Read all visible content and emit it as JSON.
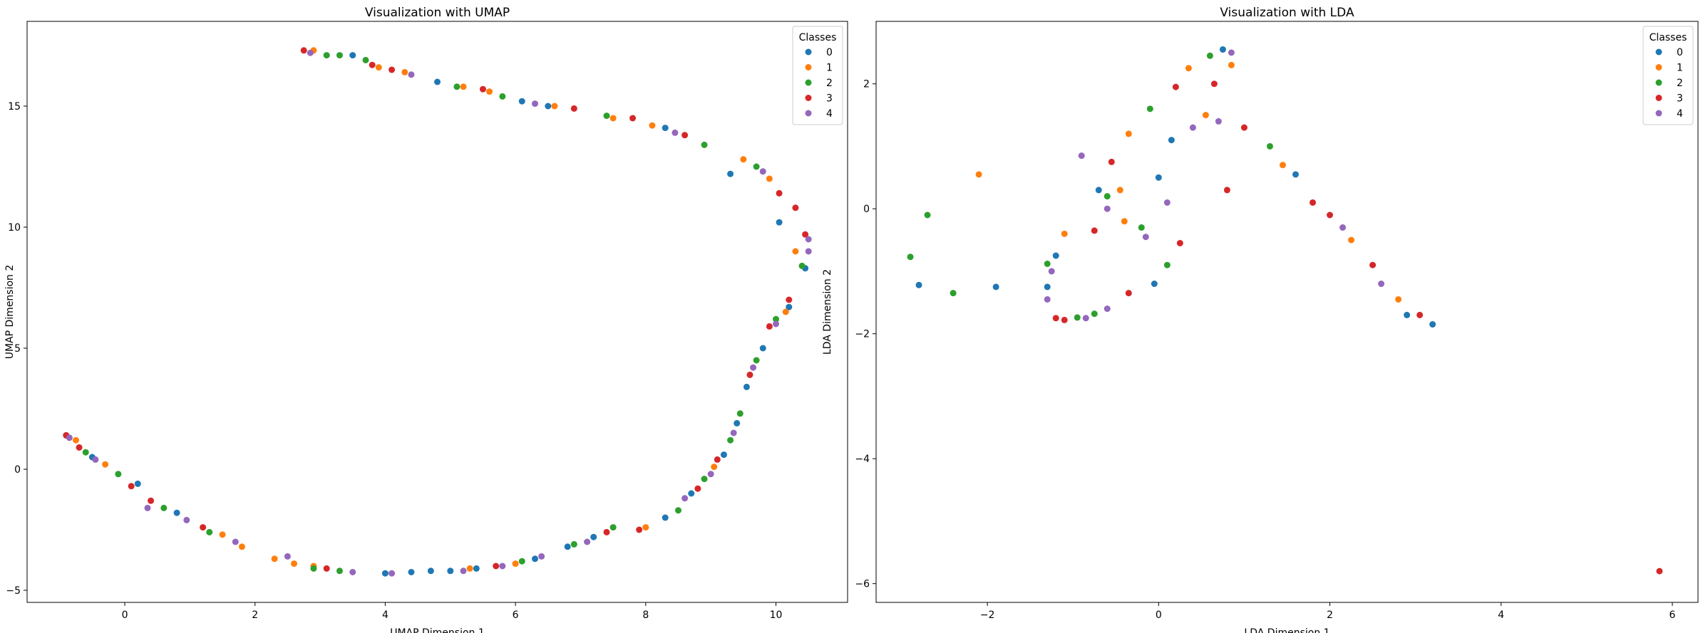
{
  "chart_data": [
    {
      "type": "scatter",
      "title": "Visualization with UMAP",
      "xlabel": "UMAP Dimension 1",
      "ylabel": "UMAP Dimension 2",
      "xlim": [
        -1.5,
        11.1
      ],
      "ylim": [
        -5.5,
        18.5
      ],
      "xticks": [
        0,
        2,
        4,
        6,
        8,
        10
      ],
      "yticks": [
        -5,
        0,
        5,
        10,
        15
      ],
      "grid": false,
      "legend": {
        "title": "Classes",
        "placement": "top-right"
      },
      "series": [
        {
          "name": "0",
          "color": "#1f77b4",
          "points": [
            [
              3.5,
              17.1
            ],
            [
              4.8,
              16.0
            ],
            [
              6.1,
              15.2
            ],
            [
              6.5,
              15.0
            ],
            [
              8.3,
              14.1
            ],
            [
              9.3,
              12.2
            ],
            [
              10.05,
              10.2
            ],
            [
              10.45,
              8.3
            ],
            [
              10.2,
              6.7
            ],
            [
              9.8,
              5.0
            ],
            [
              9.55,
              3.4
            ],
            [
              9.4,
              1.9
            ],
            [
              9.2,
              0.6
            ],
            [
              8.7,
              -1.0
            ],
            [
              8.3,
              -2.0
            ],
            [
              7.2,
              -2.8
            ],
            [
              6.8,
              -3.2
            ],
            [
              6.3,
              -3.7
            ],
            [
              5.4,
              -4.1
            ],
            [
              5.0,
              -4.2
            ],
            [
              4.7,
              -4.2
            ],
            [
              4.4,
              -4.25
            ],
            [
              4.0,
              -4.3
            ],
            [
              0.8,
              -1.8
            ],
            [
              0.2,
              -0.6
            ],
            [
              -0.5,
              0.5
            ],
            [
              -0.9,
              1.4
            ]
          ]
        },
        {
          "name": "1",
          "color": "#ff7f0e",
          "points": [
            [
              2.9,
              17.3
            ],
            [
              3.9,
              16.6
            ],
            [
              4.3,
              16.4
            ],
            [
              5.2,
              15.8
            ],
            [
              5.6,
              15.6
            ],
            [
              6.6,
              15.0
            ],
            [
              7.5,
              14.5
            ],
            [
              8.1,
              14.2
            ],
            [
              9.5,
              12.8
            ],
            [
              9.9,
              12.0
            ],
            [
              10.3,
              9.0
            ],
            [
              10.15,
              6.5
            ],
            [
              9.05,
              0.1
            ],
            [
              8.0,
              -2.4
            ],
            [
              6.0,
              -3.9
            ],
            [
              5.3,
              -4.1
            ],
            [
              2.9,
              -4.0
            ],
            [
              2.6,
              -3.9
            ],
            [
              2.3,
              -3.7
            ],
            [
              1.8,
              -3.2
            ],
            [
              1.5,
              -2.7
            ],
            [
              -0.3,
              0.2
            ],
            [
              -0.75,
              1.2
            ]
          ]
        },
        {
          "name": "2",
          "color": "#2ca02c",
          "points": [
            [
              3.1,
              17.1
            ],
            [
              3.3,
              17.1
            ],
            [
              3.7,
              16.9
            ],
            [
              5.1,
              15.8
            ],
            [
              5.8,
              15.4
            ],
            [
              7.4,
              14.6
            ],
            [
              8.9,
              13.4
            ],
            [
              9.7,
              12.5
            ],
            [
              10.4,
              8.4
            ],
            [
              10.0,
              6.2
            ],
            [
              9.7,
              4.5
            ],
            [
              9.45,
              2.3
            ],
            [
              9.3,
              1.2
            ],
            [
              8.9,
              -0.4
            ],
            [
              8.5,
              -1.7
            ],
            [
              7.5,
              -2.4
            ],
            [
              6.9,
              -3.1
            ],
            [
              6.1,
              -3.8
            ],
            [
              3.3,
              -4.2
            ],
            [
              2.9,
              -4.1
            ],
            [
              1.3,
              -2.6
            ],
            [
              0.6,
              -1.6
            ],
            [
              -0.1,
              -0.2
            ],
            [
              -0.6,
              0.7
            ]
          ]
        },
        {
          "name": "3",
          "color": "#d62728",
          "points": [
            [
              2.75,
              17.3
            ],
            [
              3.8,
              16.7
            ],
            [
              4.1,
              16.5
            ],
            [
              5.5,
              15.7
            ],
            [
              6.9,
              14.9
            ],
            [
              7.8,
              14.5
            ],
            [
              8.6,
              13.8
            ],
            [
              10.05,
              11.4
            ],
            [
              10.3,
              10.8
            ],
            [
              10.45,
              9.7
            ],
            [
              10.2,
              7.0
            ],
            [
              9.9,
              5.9
            ],
            [
              9.6,
              3.9
            ],
            [
              9.1,
              0.4
            ],
            [
              8.8,
              -0.8
            ],
            [
              7.9,
              -2.5
            ],
            [
              7.4,
              -2.6
            ],
            [
              5.7,
              -4.0
            ],
            [
              3.1,
              -4.1
            ],
            [
              1.2,
              -2.4
            ],
            [
              0.4,
              -1.3
            ],
            [
              0.1,
              -0.7
            ],
            [
              -0.7,
              0.9
            ],
            [
              -0.9,
              1.4
            ]
          ]
        },
        {
          "name": "4",
          "color": "#9467bd",
          "points": [
            [
              2.85,
              17.2
            ],
            [
              4.4,
              16.3
            ],
            [
              6.3,
              15.1
            ],
            [
              8.45,
              13.9
            ],
            [
              9.8,
              12.3
            ],
            [
              10.5,
              9.5
            ],
            [
              10.5,
              9.0
            ],
            [
              10.0,
              6.0
            ],
            [
              9.65,
              4.2
            ],
            [
              9.35,
              1.5
            ],
            [
              9.0,
              -0.2
            ],
            [
              8.6,
              -1.2
            ],
            [
              7.1,
              -3.0
            ],
            [
              6.4,
              -3.6
            ],
            [
              5.8,
              -4.0
            ],
            [
              5.2,
              -4.2
            ],
            [
              4.1,
              -4.3
            ],
            [
              3.5,
              -4.25
            ],
            [
              2.5,
              -3.6
            ],
            [
              1.7,
              -3.0
            ],
            [
              0.95,
              -2.1
            ],
            [
              0.35,
              -1.6
            ],
            [
              -0.45,
              0.4
            ],
            [
              -0.85,
              1.3
            ]
          ]
        }
      ]
    },
    {
      "type": "scatter",
      "title": "Visualization with LDA",
      "xlabel": "LDA Dimension 1",
      "ylabel": "LDA Dimension 2",
      "xlim": [
        -3.3,
        6.3
      ],
      "ylim": [
        -6.3,
        3.0
      ],
      "xticks": [
        -2,
        0,
        2,
        4,
        6
      ],
      "yticks": [
        -6,
        -4,
        -2,
        0,
        2
      ],
      "grid": false,
      "legend": {
        "title": "Classes",
        "placement": "top-right"
      },
      "series": [
        {
          "name": "0",
          "color": "#1f77b4",
          "points": [
            [
              -2.8,
              -1.22
            ],
            [
              -1.9,
              -1.25
            ],
            [
              -1.3,
              -1.25
            ],
            [
              -1.2,
              -0.75
            ],
            [
              -0.05,
              -1.2
            ],
            [
              0.0,
              0.5
            ],
            [
              0.15,
              1.1
            ],
            [
              0.75,
              2.55
            ],
            [
              1.6,
              0.55
            ],
            [
              2.9,
              -1.7
            ],
            [
              3.2,
              -1.85
            ],
            [
              -0.7,
              0.3
            ]
          ]
        },
        {
          "name": "1",
          "color": "#ff7f0e",
          "points": [
            [
              -2.1,
              0.55
            ],
            [
              -1.1,
              -0.4
            ],
            [
              -0.35,
              1.2
            ],
            [
              -0.45,
              0.3
            ],
            [
              0.35,
              2.25
            ],
            [
              0.55,
              1.5
            ],
            [
              0.85,
              2.3
            ],
            [
              1.45,
              0.7
            ],
            [
              2.25,
              -0.5
            ],
            [
              2.8,
              -1.45
            ],
            [
              -0.4,
              -0.2
            ]
          ]
        },
        {
          "name": "2",
          "color": "#2ca02c",
          "points": [
            [
              -2.9,
              -0.77
            ],
            [
              -2.7,
              -0.1
            ],
            [
              -2.4,
              -1.35
            ],
            [
              -1.3,
              -0.88
            ],
            [
              -0.95,
              -1.74
            ],
            [
              -0.75,
              -1.68
            ],
            [
              -0.1,
              1.6
            ],
            [
              0.1,
              -0.9
            ],
            [
              0.6,
              2.45
            ],
            [
              1.3,
              1.0
            ],
            [
              -0.2,
              -0.3
            ],
            [
              -0.6,
              0.2
            ]
          ]
        },
        {
          "name": "3",
          "color": "#d62728",
          "points": [
            [
              -1.2,
              -1.75
            ],
            [
              -1.1,
              -1.78
            ],
            [
              -0.55,
              0.75
            ],
            [
              -0.75,
              -0.35
            ],
            [
              -0.35,
              -1.35
            ],
            [
              0.2,
              1.95
            ],
            [
              0.65,
              2.0
            ],
            [
              0.8,
              0.3
            ],
            [
              1.8,
              0.1
            ],
            [
              2.0,
              -0.1
            ],
            [
              2.5,
              -0.9
            ],
            [
              3.05,
              -1.7
            ],
            [
              5.85,
              -5.8
            ],
            [
              1.0,
              1.3
            ],
            [
              0.25,
              -0.55
            ]
          ]
        },
        {
          "name": "4",
          "color": "#9467bd",
          "points": [
            [
              -1.3,
              -1.45
            ],
            [
              -1.25,
              -1.0
            ],
            [
              -0.9,
              0.85
            ],
            [
              -0.85,
              -1.75
            ],
            [
              -0.6,
              -1.6
            ],
            [
              -0.6,
              0.0
            ],
            [
              0.85,
              2.5
            ],
            [
              2.6,
              -1.2
            ],
            [
              2.15,
              -0.3
            ],
            [
              0.7,
              1.4
            ],
            [
              0.4,
              1.3
            ],
            [
              -0.15,
              -0.45
            ],
            [
              0.1,
              0.1
            ]
          ]
        }
      ]
    }
  ]
}
